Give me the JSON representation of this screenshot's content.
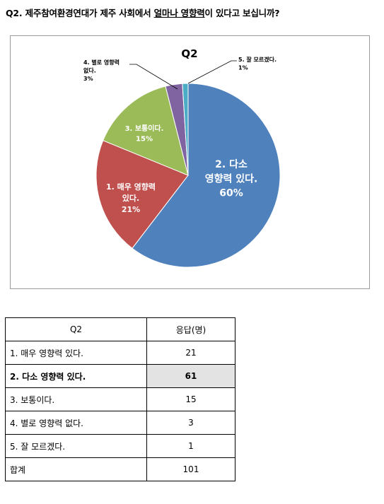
{
  "question": {
    "prefix": "Q2. 제주참여환경연대가 제주 사회에서 ",
    "underlined": "얼마나 영향력",
    "suffix": "이 있다고 보십니까?"
  },
  "chart_data": {
    "type": "pie",
    "title": "Q2",
    "slices": [
      {
        "label": "2. 다소 영향력 있다.",
        "percent_label": "60%",
        "value": 61,
        "color": "#4f81bd"
      },
      {
        "label": "1. 매우 영향력 있다.",
        "percent_label": "21%",
        "value": 21,
        "color": "#c0504d"
      },
      {
        "label": "3. 보통이다.",
        "percent_label": "15%",
        "value": 15,
        "color": "#9bbb59"
      },
      {
        "label": "4. 별로 영향력 없다.",
        "percent_label": "3%",
        "value": 3,
        "color": "#8064a2"
      },
      {
        "label": "5. 잘 모르겠다.",
        "percent_label": "1%",
        "value": 1,
        "color": "#4bacc6"
      }
    ],
    "legend": "none"
  },
  "table": {
    "headers": [
      "Q2",
      "응답(명)"
    ],
    "rows": [
      {
        "label": "1. 매우 영향력 있다.",
        "value": "21"
      },
      {
        "label": "2. 다소 영향력 있다.",
        "value": "61"
      },
      {
        "label": "3. 보통이다.",
        "value": "15"
      },
      {
        "label": "4. 별로 영향력 없다.",
        "value": "3"
      },
      {
        "label": "5. 잘 모르겠다.",
        "value": "1"
      },
      {
        "label": "합계",
        "value": "101"
      }
    ]
  }
}
